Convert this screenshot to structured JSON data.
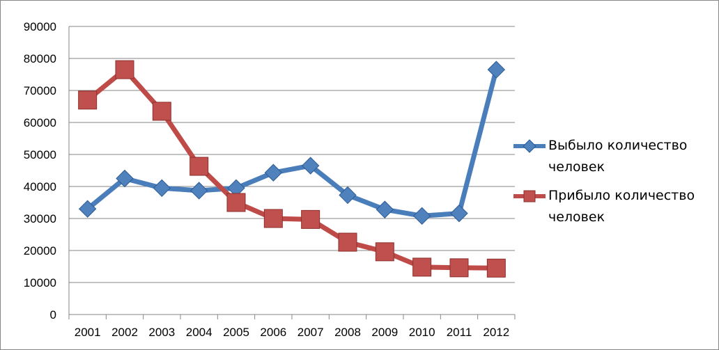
{
  "chart_data": {
    "type": "line",
    "categories": [
      "2001",
      "2002",
      "2003",
      "2004",
      "2005",
      "2006",
      "2007",
      "2008",
      "2009",
      "2010",
      "2011",
      "2012"
    ],
    "ylim": [
      0,
      90000
    ],
    "yticks": [
      0,
      10000,
      20000,
      30000,
      40000,
      50000,
      60000,
      70000,
      80000,
      90000
    ],
    "grid": "horizontal",
    "legend_position": "right",
    "series": [
      {
        "name": "Выбыло количество человек",
        "color": "#4a7ebb",
        "marker": "diamond",
        "values": [
          33000,
          42500,
          39500,
          38700,
          39500,
          44300,
          46500,
          37300,
          32800,
          30800,
          31600,
          76500
        ]
      },
      {
        "name": "Прибыло количество человек",
        "color": "#be4b48",
        "marker": "square",
        "values": [
          67000,
          76500,
          63500,
          46300,
          35000,
          30000,
          29700,
          22600,
          19600,
          14800,
          14600,
          14500
        ]
      }
    ]
  }
}
